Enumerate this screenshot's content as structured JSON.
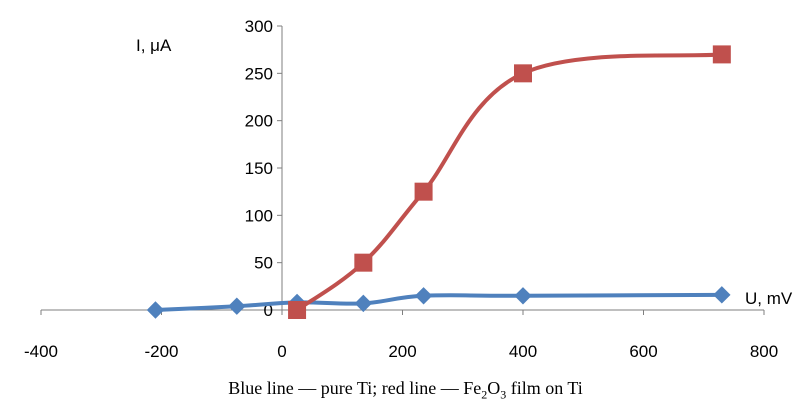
{
  "chart_data": {
    "type": "line",
    "xlabel": "U, mV",
    "ylabel": "I, μA",
    "xlim": [
      -400,
      800
    ],
    "ylim": [
      0,
      300
    ],
    "x_ticks": [
      -400,
      -200,
      0,
      200,
      400,
      600,
      800
    ],
    "y_ticks": [
      0,
      50,
      100,
      150,
      200,
      250,
      300
    ],
    "grid": false,
    "legend": "none",
    "series": [
      {
        "color": "#4F81BD",
        "marker": "diamond",
        "smooth": true,
        "points": [
          [
            -210,
            0
          ],
          [
            -75,
            4
          ],
          [
            25,
            8
          ],
          [
            135,
            7
          ],
          [
            235,
            15
          ],
          [
            400,
            15
          ],
          [
            730,
            16
          ]
        ]
      },
      {
        "color": "#C0504D",
        "marker": "square",
        "smooth": true,
        "points": [
          [
            25,
            0
          ],
          [
            135,
            50
          ],
          [
            235,
            125
          ],
          [
            400,
            250
          ],
          [
            730,
            270
          ]
        ]
      }
    ]
  },
  "caption": {
    "part1": "Blue line — pure Ti; red line — Fe",
    "sub1": "2",
    "part2": "O",
    "sub2": "3",
    "part3": " film on Ti"
  }
}
